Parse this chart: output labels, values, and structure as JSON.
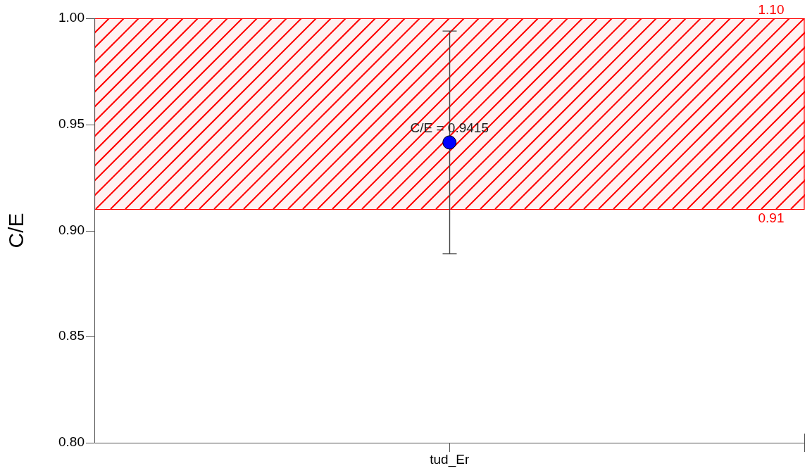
{
  "chart_data": {
    "type": "scatter",
    "categories": [
      "tud_Er"
    ],
    "ylabel": "C/E",
    "series": [
      {
        "color": "#0000ff",
        "values": [
          0.9415
        ],
        "errors": [
          [
            0.889,
            0.994
          ]
        ],
        "value_labels": [
          "C/E = 0.9415"
        ]
      }
    ],
    "ylim": [
      0.8,
      1.0
    ],
    "yticks": [
      {
        "value": 0.8,
        "label": "0.80"
      },
      {
        "value": 0.85,
        "label": "0.85"
      },
      {
        "value": 0.9,
        "label": "0.90"
      },
      {
        "value": 0.95,
        "label": "0.95"
      },
      {
        "value": 1.0,
        "label": "1.00"
      }
    ],
    "bands": [
      {
        "axis": "y",
        "from": 0.91,
        "to": 1.0,
        "color": "#ff0000"
      }
    ],
    "annotations": [
      {
        "text": "1.10",
        "y": 1.0
      },
      {
        "text": "0.91",
        "y": 0.91
      }
    ],
    "grid": false,
    "legend": false,
    "marker": "circle"
  }
}
